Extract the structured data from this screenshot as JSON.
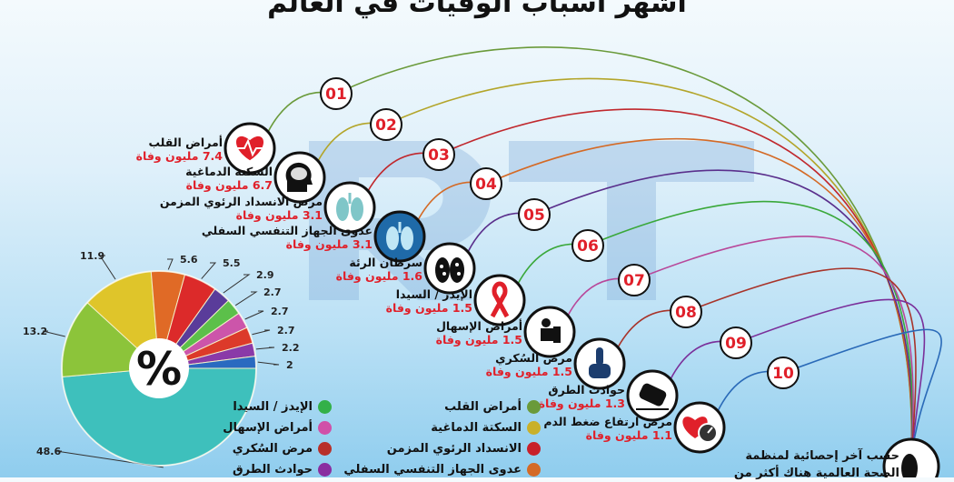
{
  "title": "أشهر أسباب الوفيات في العالم",
  "watermark": "RT",
  "causes": [
    {
      "num": "01",
      "name": "أمراض القلب",
      "value": "7.4 مليون وفاة",
      "icon": "heart-pulse-icon",
      "color": "#6a9a3a"
    },
    {
      "num": "02",
      "name": "السكتة الدماغية",
      "value": "6.7 مليون وفاة",
      "icon": "brain-icon",
      "color": "#b3a52a"
    },
    {
      "num": "03",
      "name": "مرض الانسداد الرئوي المزمن",
      "value": "3.1 مليون وفاة",
      "icon": "lungs-icon",
      "color": "#c0282d"
    },
    {
      "num": "04",
      "name": "عدوى الجهاز التنفسي السفلي",
      "value": "3.1 مليون وفاة",
      "icon": "lungs-infection-icon",
      "color": "#d46a26"
    },
    {
      "num": "05",
      "name": "سرطان الرئة",
      "value": "1.6 مليون وفاة",
      "icon": "lung-cancer-icon",
      "color": "#5a2f8c"
    },
    {
      "num": "06",
      "name": "الإيدز / السيدا",
      "value": "1.5 مليون وفاة",
      "icon": "aids-ribbon-icon",
      "color": "#3aa83a"
    },
    {
      "num": "07",
      "name": "أمراض الإسهال",
      "value": "1.5 مليون وفاة",
      "icon": "toilet-icon",
      "color": "#b8489a"
    },
    {
      "num": "08",
      "name": "مرض السُكري",
      "value": "1.5 مليون وفاة",
      "icon": "finger-prick-icon",
      "color": "#a8342a"
    },
    {
      "num": "09",
      "name": "حوادث الطرق",
      "value": "1.3 مليون وفاة",
      "icon": "car-crash-icon",
      "color": "#7a2f9a"
    },
    {
      "num": "10",
      "name": "مرض ارتفاع ضغط الدم",
      "value": "1.1 مليون وفاة",
      "icon": "blood-pressure-icon",
      "color": "#2a6ab8"
    }
  ],
  "pie_center_label": "%",
  "note": [
    "حسب آخر إحصائية لمنظمة",
    "الصحة العالمية هناك أكثر من"
  ],
  "footer_icon": "foot-tag-icon",
  "legend": {
    "right": [
      {
        "label": "أمراض القلب",
        "color": "#6a9a3a"
      },
      {
        "label": "السكتة الدماغية",
        "color": "#c9b02a"
      },
      {
        "label": "الانسداد الرئوي المزمن",
        "color": "#c8202a"
      },
      {
        "label": "عدوى الجهاز التنفسي السفلي",
        "color": "#d46a26"
      }
    ],
    "left": [
      {
        "label": "الإيدز / السيدا",
        "color": "#33b048"
      },
      {
        "label": "أمراض الإسهال",
        "color": "#d050a8"
      },
      {
        "label": "مرض السُكري",
        "color": "#b8302a"
      },
      {
        "label": "حوادث الطرق",
        "color": "#8a2ea0"
      }
    ]
  },
  "chart_data": {
    "type": "pie",
    "title": "",
    "values": [
      48.6,
      13.2,
      11.9,
      5.6,
      5.5,
      2.9,
      2.7,
      2.7,
      2.7,
      2.2,
      2
    ],
    "labels": [
      "48.6",
      "13.2",
      "11.9",
      "5.6",
      "5.5",
      "2.9",
      "2.7",
      "2.7",
      "2.7",
      "2.2",
      "2"
    ],
    "colors": [
      "#3ec0bc",
      "#8cc43a",
      "#dfc52a",
      "#e06a26",
      "#dc2a2a",
      "#5a3c9a",
      "#5cc04a",
      "#cc55aa",
      "#dc3a2a",
      "#8a3aa8",
      "#2a6ac0"
    ]
  }
}
